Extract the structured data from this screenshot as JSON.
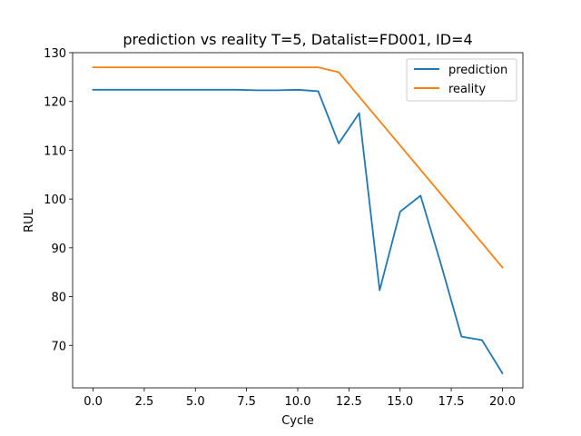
{
  "chart_data": {
    "type": "line",
    "title": "prediction vs reality T=5, Datalist=FD001, ID=4",
    "xlabel": "Cycle",
    "ylabel": "RUL",
    "xlim": [
      -1,
      21
    ],
    "ylim": [
      61.3,
      130
    ],
    "xticks": [
      0,
      2.5,
      5,
      7.5,
      10,
      12.5,
      15,
      17.5,
      20
    ],
    "xtick_labels": [
      "0.0",
      "2.5",
      "5.0",
      "7.5",
      "10.0",
      "12.5",
      "15.0",
      "17.5",
      "20.0"
    ],
    "yticks": [
      70,
      80,
      90,
      100,
      110,
      120,
      130
    ],
    "ytick_labels": [
      "70",
      "80",
      "90",
      "100",
      "110",
      "120",
      "130"
    ],
    "grid": false,
    "legend_position": "top-right",
    "x": [
      0,
      1,
      2,
      3,
      4,
      5,
      6,
      7,
      8,
      9,
      10,
      11,
      12,
      13,
      14,
      15,
      16,
      17,
      18,
      19,
      20
    ],
    "series": [
      {
        "name": "prediction",
        "color": "#1f77b4",
        "values": [
          122.4,
          122.4,
          122.4,
          122.4,
          122.4,
          122.4,
          122.4,
          122.4,
          122.3,
          122.3,
          122.4,
          122.1,
          111.4,
          117.6,
          81.3,
          97.4,
          100.7,
          86.6,
          71.8,
          71.1,
          64.3
        ]
      },
      {
        "name": "reality",
        "color": "#ff7f0e",
        "values": [
          127,
          127,
          127,
          127,
          127,
          127,
          127,
          127,
          127,
          127,
          127,
          127,
          126,
          121,
          116,
          111,
          106,
          101,
          96,
          91,
          86
        ]
      }
    ]
  }
}
